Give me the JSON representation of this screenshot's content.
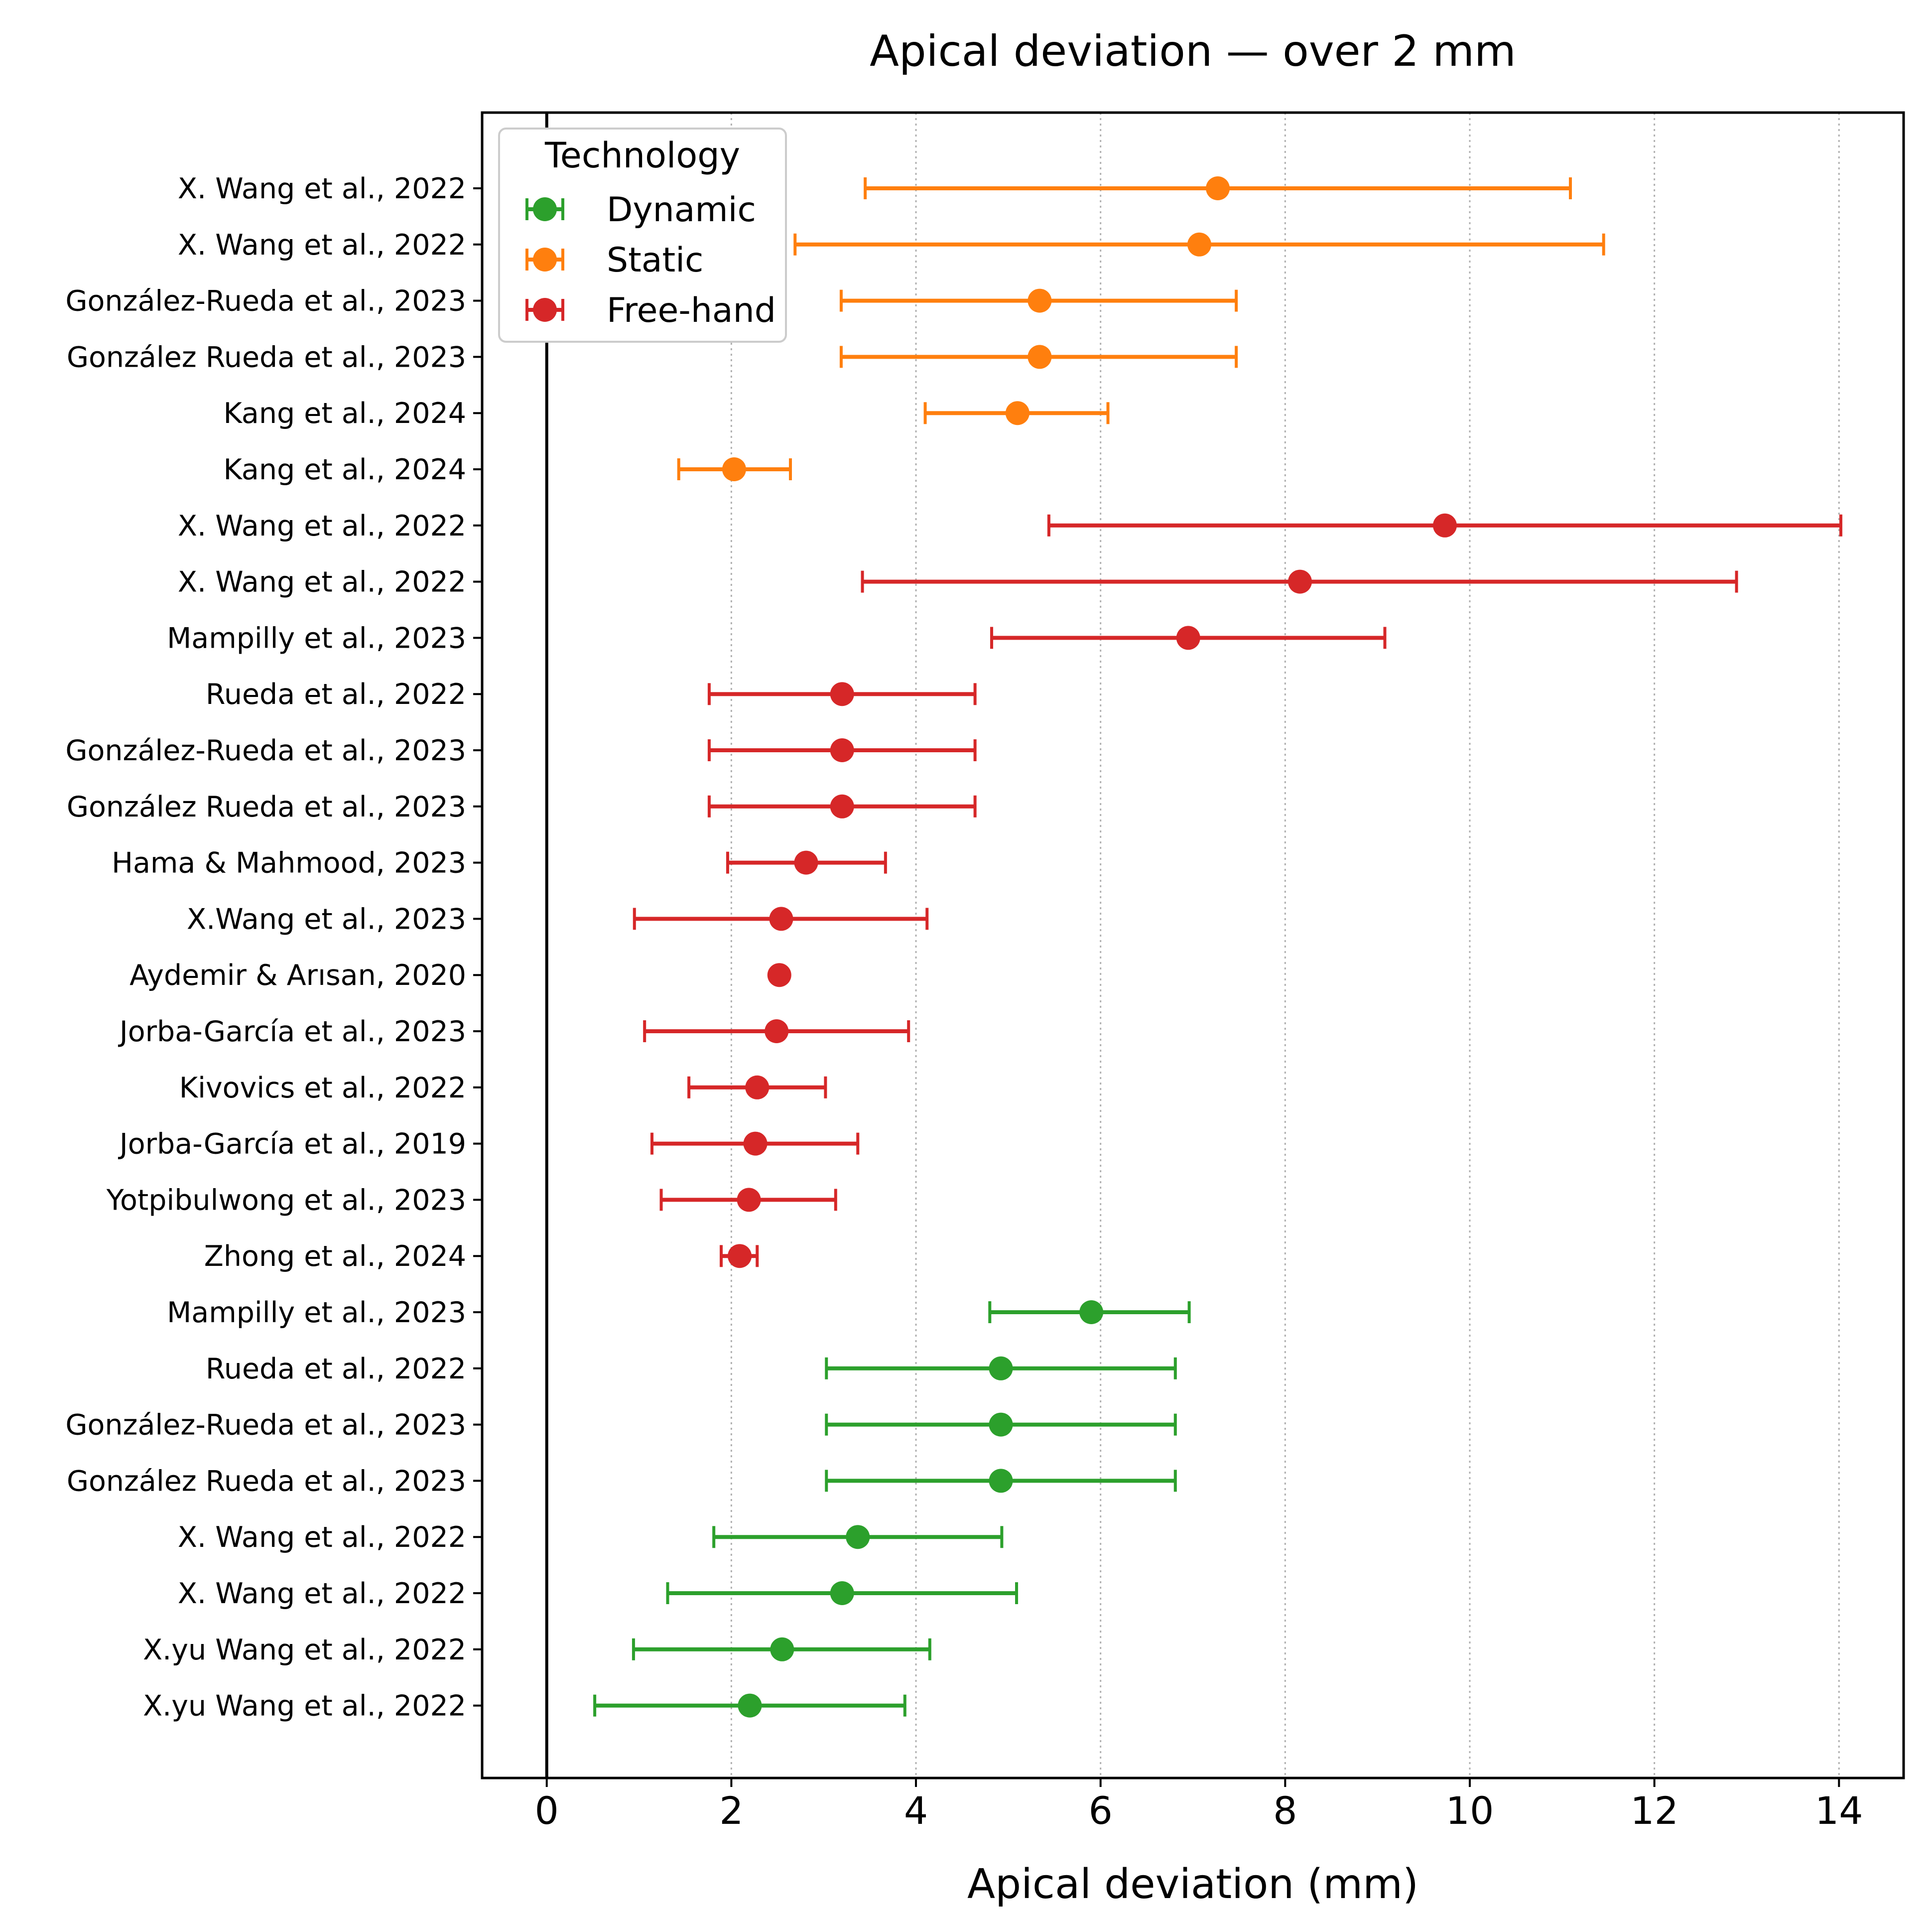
{
  "chart_data": {
    "type": "scatter",
    "subtype": "forest-plot-errorbar",
    "title": "Apical deviation — over 2 mm",
    "xlabel": "Apical deviation (mm)",
    "ylabel": "",
    "xlim": [
      -0.7,
      14.7
    ],
    "xticks": [
      0,
      2,
      4,
      6,
      8,
      10,
      12,
      14
    ],
    "x_grid": true,
    "reference_line_x": 0,
    "legend": {
      "title": "Technology",
      "placement": "top-left",
      "entries": [
        {
          "label": "Dynamic",
          "color": "#2ca02c"
        },
        {
          "label": "Static",
          "color": "#ff7f0e"
        },
        {
          "label": "Free-hand",
          "color": "#d62728"
        }
      ]
    },
    "colors": {
      "Dynamic": "#2ca02c",
      "Static": "#ff7f0e",
      "Free-hand": "#d62728"
    },
    "rows": [
      {
        "label": "X. Wang et al., 2022",
        "group": "Static",
        "mean": 7.27,
        "low": 3.45,
        "high": 11.09
      },
      {
        "label": "X. Wang et al., 2022",
        "group": "Static",
        "mean": 7.07,
        "low": 2.69,
        "high": 11.45
      },
      {
        "label": "González-Rueda et al., 2023",
        "group": "Static",
        "mean": 5.34,
        "low": 3.19,
        "high": 7.47
      },
      {
        "label": "González Rueda et al., 2023",
        "group": "Static",
        "mean": 5.34,
        "low": 3.19,
        "high": 7.47
      },
      {
        "label": "Kang et al., 2024",
        "group": "Static",
        "mean": 5.1,
        "low": 4.1,
        "high": 6.08
      },
      {
        "label": "Kang et al., 2024",
        "group": "Static",
        "mean": 2.03,
        "low": 1.43,
        "high": 2.64
      },
      {
        "label": "X. Wang et al., 2022",
        "group": "Free-hand",
        "mean": 9.73,
        "low": 5.44,
        "high": 14.02
      },
      {
        "label": "X. Wang et al., 2022",
        "group": "Free-hand",
        "mean": 8.16,
        "low": 3.42,
        "high": 12.89
      },
      {
        "label": "Mampilly et al., 2023",
        "group": "Free-hand",
        "mean": 6.95,
        "low": 4.82,
        "high": 9.08
      },
      {
        "label": "Rueda et al., 2022",
        "group": "Free-hand",
        "mean": 3.2,
        "low": 1.76,
        "high": 4.64
      },
      {
        "label": "González-Rueda et al., 2023",
        "group": "Free-hand",
        "mean": 3.2,
        "low": 1.76,
        "high": 4.64
      },
      {
        "label": "González Rueda et al., 2023",
        "group": "Free-hand",
        "mean": 3.2,
        "low": 1.76,
        "high": 4.64
      },
      {
        "label": "Hama & Mahmood, 2023",
        "group": "Free-hand",
        "mean": 2.81,
        "low": 1.96,
        "high": 3.67
      },
      {
        "label": "X.Wang et al., 2023",
        "group": "Free-hand",
        "mean": 2.54,
        "low": 0.95,
        "high": 4.12
      },
      {
        "label": "Aydemir & Arısan, 2020",
        "group": "Free-hand",
        "mean": 2.52,
        "low": 2.52,
        "high": 2.52
      },
      {
        "label": "Jorba-García et al., 2023",
        "group": "Free-hand",
        "mean": 2.49,
        "low": 1.06,
        "high": 3.92
      },
      {
        "label": "Kivovics et al., 2022",
        "group": "Free-hand",
        "mean": 2.28,
        "low": 1.54,
        "high": 3.02
      },
      {
        "label": "Jorba-García et al., 2019",
        "group": "Free-hand",
        "mean": 2.26,
        "low": 1.14,
        "high": 3.37
      },
      {
        "label": "Yotpibulwong et al., 2023",
        "group": "Free-hand",
        "mean": 2.19,
        "low": 1.24,
        "high": 3.13
      },
      {
        "label": "Zhong et al., 2024",
        "group": "Free-hand",
        "mean": 2.09,
        "low": 1.89,
        "high": 2.28
      },
      {
        "label": "Mampilly et al., 2023",
        "group": "Dynamic",
        "mean": 5.9,
        "low": 4.8,
        "high": 6.96
      },
      {
        "label": "Rueda et al., 2022",
        "group": "Dynamic",
        "mean": 4.92,
        "low": 3.03,
        "high": 6.81
      },
      {
        "label": "González-Rueda et al., 2023",
        "group": "Dynamic",
        "mean": 4.92,
        "low": 3.03,
        "high": 6.81
      },
      {
        "label": "González Rueda et al., 2023",
        "group": "Dynamic",
        "mean": 4.92,
        "low": 3.03,
        "high": 6.81
      },
      {
        "label": "X. Wang et al., 2022",
        "group": "Dynamic",
        "mean": 3.37,
        "low": 1.81,
        "high": 4.93
      },
      {
        "label": "X. Wang et al., 2022",
        "group": "Dynamic",
        "mean": 3.2,
        "low": 1.31,
        "high": 5.09
      },
      {
        "label": "X.yu Wang et al., 2022",
        "group": "Dynamic",
        "mean": 2.55,
        "low": 0.94,
        "high": 4.15
      },
      {
        "label": "X.yu Wang et al., 2022",
        "group": "Dynamic",
        "mean": 2.2,
        "low": 0.52,
        "high": 3.88
      }
    ]
  }
}
